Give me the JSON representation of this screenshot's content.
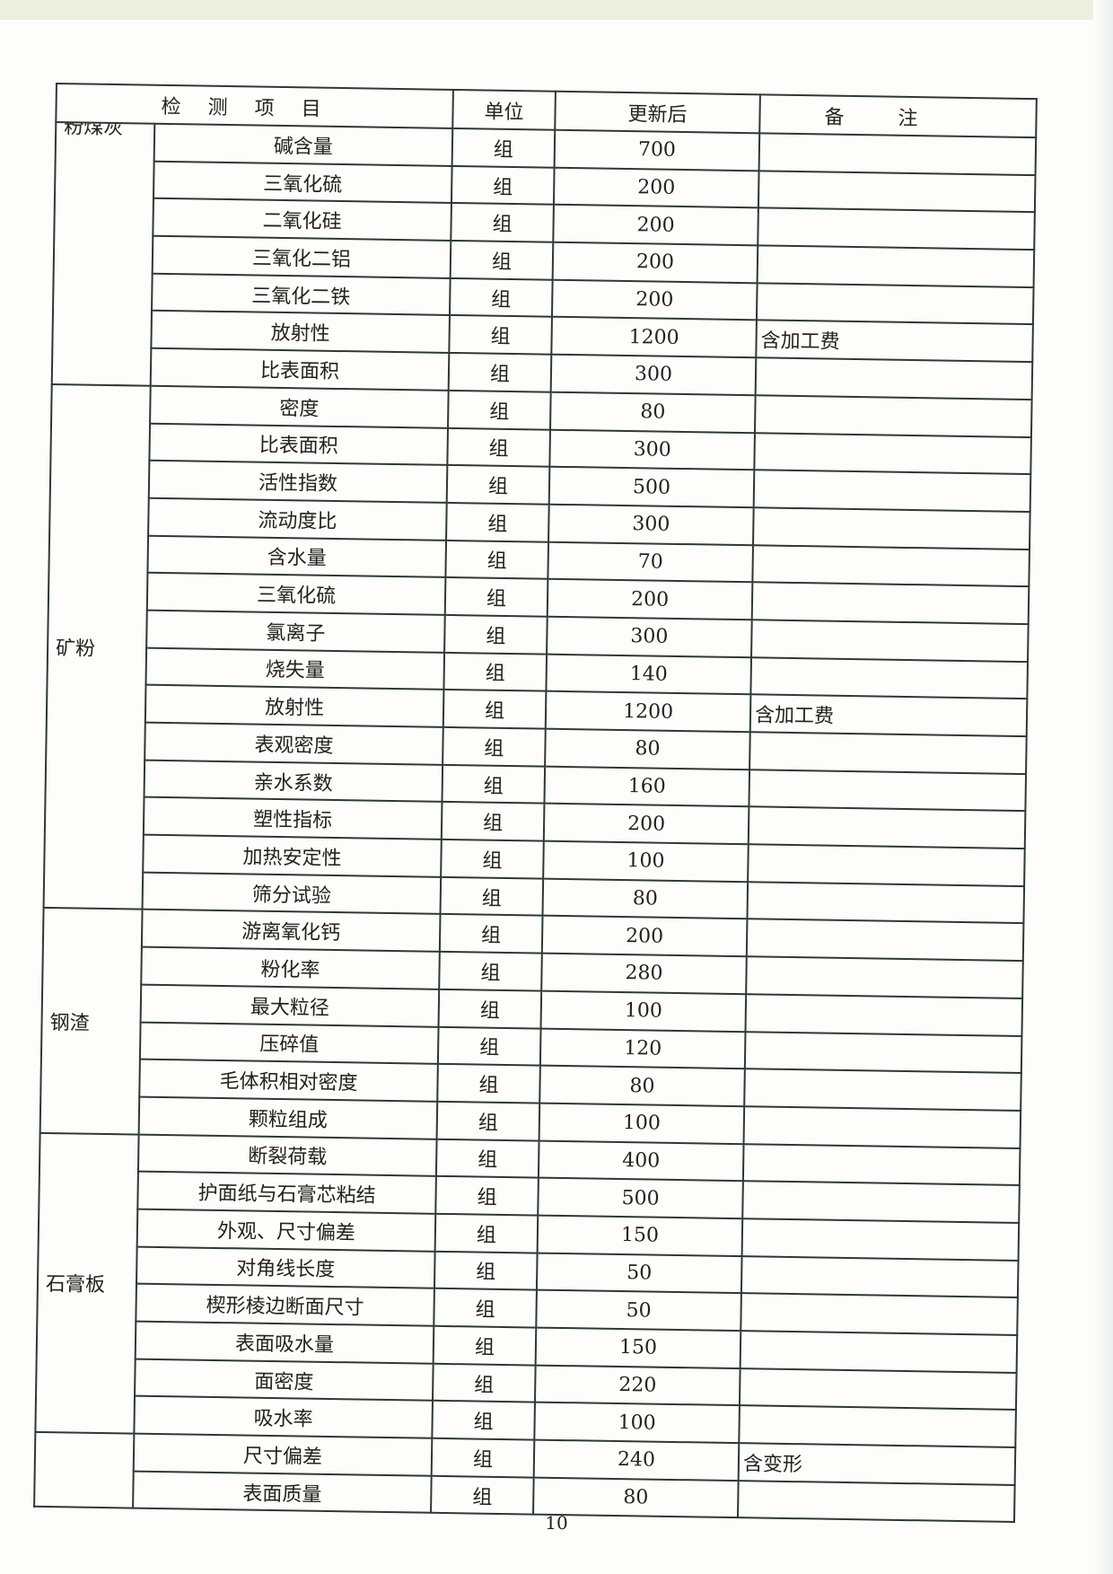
{
  "header": {
    "item": "检测项目",
    "unit": "单位",
    "value": "更新后",
    "note": "备注"
  },
  "groups": [
    {
      "name": "粉煤灰",
      "clipped": true,
      "rows": [
        [
          "碱含量",
          "组",
          "700",
          ""
        ],
        [
          "三氧化硫",
          "组",
          "200",
          ""
        ],
        [
          "二氧化硅",
          "组",
          "200",
          ""
        ],
        [
          "三氧化二铝",
          "组",
          "200",
          ""
        ],
        [
          "三氧化二铁",
          "组",
          "200",
          ""
        ],
        [
          "放射性",
          "组",
          "1200",
          "含加工费"
        ],
        [
          "比表面积",
          "组",
          "300",
          ""
        ]
      ]
    },
    {
      "name": "矿粉",
      "rows": [
        [
          "密度",
          "组",
          "80",
          ""
        ],
        [
          "比表面积",
          "组",
          "300",
          ""
        ],
        [
          "活性指数",
          "组",
          "500",
          ""
        ],
        [
          "流动度比",
          "组",
          "300",
          ""
        ],
        [
          "含水量",
          "组",
          "70",
          ""
        ],
        [
          "三氧化硫",
          "组",
          "200",
          ""
        ],
        [
          "氯离子",
          "组",
          "300",
          ""
        ],
        [
          "烧失量",
          "组",
          "140",
          ""
        ],
        [
          "放射性",
          "组",
          "1200",
          "含加工费"
        ],
        [
          "表观密度",
          "组",
          "80",
          ""
        ],
        [
          "亲水系数",
          "组",
          "160",
          ""
        ],
        [
          "塑性指标",
          "组",
          "200",
          ""
        ],
        [
          "加热安定性",
          "组",
          "100",
          ""
        ],
        [
          "筛分试验",
          "组",
          "80",
          ""
        ]
      ]
    },
    {
      "name": "钢渣",
      "rows": [
        [
          "游离氧化钙",
          "组",
          "200",
          ""
        ],
        [
          "粉化率",
          "组",
          "280",
          ""
        ],
        [
          "最大粒径",
          "组",
          "100",
          ""
        ],
        [
          "压碎值",
          "组",
          "120",
          ""
        ],
        [
          "毛体积相对密度",
          "组",
          "80",
          ""
        ],
        [
          "颗粒组成",
          "组",
          "100",
          ""
        ]
      ]
    },
    {
      "name": "石膏板",
      "rows": [
        [
          "断裂荷载",
          "组",
          "400",
          ""
        ],
        [
          "护面纸与石膏芯粘结",
          "组",
          "500",
          ""
        ],
        [
          "外观、尺寸偏差",
          "组",
          "150",
          ""
        ],
        [
          "对角线长度",
          "组",
          "50",
          ""
        ],
        [
          "楔形棱边断面尺寸",
          "组",
          "50",
          ""
        ],
        [
          "表面吸水量",
          "组",
          "150",
          ""
        ],
        [
          "面密度",
          "组",
          "220",
          ""
        ],
        [
          "吸水率",
          "组",
          "100",
          ""
        ]
      ]
    },
    {
      "name": "",
      "rows": [
        [
          "尺寸偏差",
          "组",
          "240",
          "含变形"
        ],
        [
          "表面质量",
          "组",
          "80",
          ""
        ]
      ]
    }
  ],
  "page_number": "10"
}
